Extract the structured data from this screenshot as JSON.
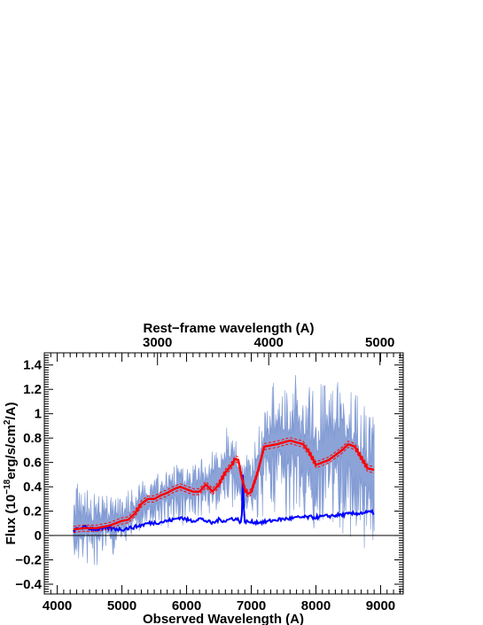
{
  "chart_data": {
    "type": "line",
    "xlabel": "Observed Wavelength (A)",
    "x2label": "Rest−frame wavelength (A)",
    "ylabel_parts": [
      "Flux (10",
      "−18",
      "erg/s/cm",
      "2",
      "/A)"
    ],
    "xlim": [
      3800,
      9350
    ],
    "ylim": [
      -0.48,
      1.5
    ],
    "x_ticks": [
      4000,
      5000,
      6000,
      7000,
      8000,
      9000
    ],
    "x_tick_labels": [
      "4000",
      "5000",
      "6000",
      "7000",
      "8000",
      "9000"
    ],
    "y_ticks": [
      -0.4,
      -0.2,
      0,
      0.2,
      0.4,
      0.6,
      0.8,
      1,
      1.2,
      1.4
    ],
    "y_tick_labels": [
      "−0.4",
      "−0.2",
      "0",
      "0.2",
      "0.4",
      "0.6",
      "0.8",
      "1",
      "1.2",
      "1.4"
    ],
    "x2_ticks_rest": [
      3000,
      4000,
      5000
    ],
    "x2_tick_labels": [
      "3000",
      "4000",
      "5000"
    ],
    "x2_ticks_observed": [
      5550,
      7270,
      8990
    ],
    "zero_line": true,
    "series": [
      {
        "role": "observed-spectrum-band",
        "color": "#7f99d3",
        "x": [
          4250,
          4350,
          4500,
          4700,
          4900,
          5100,
          5300,
          5500,
          5700,
          5900,
          6100,
          6300,
          6500,
          6700,
          6900,
          7000,
          7200,
          7400,
          7600,
          7800,
          8000,
          8200,
          8400,
          8600,
          8800,
          8900
        ],
        "y": [
          0.05,
          0.06,
          0.08,
          0.08,
          0.1,
          0.15,
          0.25,
          0.3,
          0.34,
          0.38,
          0.36,
          0.42,
          0.5,
          0.6,
          0.35,
          0.4,
          0.7,
          0.78,
          0.75,
          0.7,
          0.6,
          0.72,
          0.75,
          0.62,
          0.5,
          0.55
        ],
        "spread": [
          0.25,
          0.25,
          0.2,
          0.18,
          0.15,
          0.15,
          0.15,
          0.15,
          0.17,
          0.2,
          0.18,
          0.18,
          0.2,
          0.22,
          0.2,
          0.22,
          0.3,
          0.35,
          0.4,
          0.4,
          0.4,
          0.4,
          0.45,
          0.45,
          0.5,
          0.5
        ]
      },
      {
        "role": "model-fit",
        "color": "#ff0000",
        "x": [
          4250,
          4400,
          4600,
          4800,
          5000,
          5100,
          5200,
          5300,
          5400,
          5500,
          5600,
          5700,
          5800,
          5900,
          6000,
          6100,
          6200,
          6300,
          6400,
          6500,
          6600,
          6700,
          6750,
          6800,
          6850,
          6900,
          6950,
          7000,
          7100,
          7200,
          7400,
          7600,
          7800,
          7900,
          8000,
          8200,
          8400,
          8500,
          8600,
          8700,
          8800,
          8900
        ],
        "y": [
          0.05,
          0.06,
          0.06,
          0.08,
          0.12,
          0.13,
          0.18,
          0.26,
          0.3,
          0.3,
          0.33,
          0.35,
          0.38,
          0.4,
          0.38,
          0.36,
          0.36,
          0.42,
          0.36,
          0.42,
          0.52,
          0.58,
          0.63,
          0.62,
          0.48,
          0.38,
          0.34,
          0.36,
          0.52,
          0.73,
          0.75,
          0.78,
          0.75,
          0.68,
          0.58,
          0.62,
          0.7,
          0.75,
          0.73,
          0.64,
          0.55,
          0.54
        ]
      },
      {
        "role": "noise",
        "color": "#0000ff",
        "x": [
          4250,
          4400,
          4600,
          4800,
          5000,
          5200,
          5400,
          5600,
          5800,
          5900,
          6000,
          6100,
          6200,
          6300,
          6400,
          6500,
          6600,
          6700,
          6800,
          6850,
          6870,
          6890,
          6950,
          7200,
          7400,
          7600,
          7800,
          8000,
          8200,
          8400,
          8600,
          8800,
          8900
        ],
        "y": [
          0.04,
          0.07,
          0.05,
          0.06,
          0.05,
          0.07,
          0.1,
          0.11,
          0.13,
          0.15,
          0.13,
          0.12,
          0.14,
          0.12,
          0.1,
          0.13,
          0.12,
          0.14,
          0.13,
          0.1,
          0.5,
          0.12,
          0.11,
          0.11,
          0.13,
          0.14,
          0.15,
          0.15,
          0.16,
          0.17,
          0.18,
          0.19,
          0.19
        ]
      }
    ]
  }
}
